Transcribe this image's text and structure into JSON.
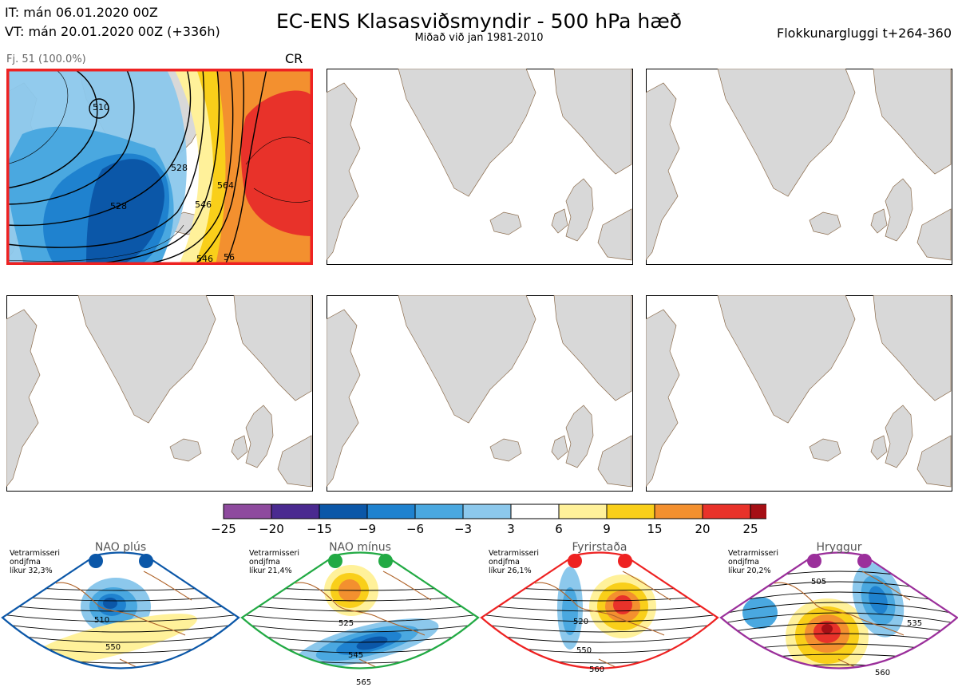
{
  "header": {
    "initial_time": "IT: mán 06.01.2020 00Z",
    "valid_time": "VT: mán 20.01.2020 00Z  (+336h)",
    "title": "EC-ENS Klasasviðsmyndir - 500 hPa hæð",
    "subtitle": "Miðað við jan 1981-2010",
    "window": "Flokkunargluggi t+264-360"
  },
  "panel1": {
    "member_label": "Fj. 51 (100.0%)",
    "cluster": "CR",
    "highlight_color": "#ee2222",
    "contour_labels": [
      "510",
      "528",
      "546",
      "564",
      "546",
      "528",
      "56"
    ]
  },
  "colorbar": {
    "ticks": [
      "−25",
      "−20",
      "−15",
      "−9",
      "−6",
      "−3",
      "3",
      "6",
      "9",
      "15",
      "20",
      "25"
    ],
    "colors": [
      "#8e4a9e",
      "#4a2a90",
      "#0b57a8",
      "#1f82cf",
      "#4aa8e0",
      "#8cc8ec",
      "#ffffff",
      "#fff19a",
      "#f9cf1a",
      "#f3902f",
      "#e8322a",
      "#a50f15"
    ]
  },
  "regimes": [
    {
      "name": "NAO plús",
      "season": "Vetrarmisseri",
      "mean": "ondjfma",
      "likelihood": "líkur 32,3%",
      "color": "#0b57a8",
      "contours": [
        "510",
        "550"
      ]
    },
    {
      "name": "NAO mínus",
      "season": "Vetrarmisseri",
      "mean": "ondjfma",
      "likelihood": "líkur 21,4%",
      "color": "#22aa44",
      "contours": [
        "525",
        "545",
        "565"
      ]
    },
    {
      "name": "Fyrirstaða",
      "season": "Vetrarmisseri",
      "mean": "ondjfma",
      "likelihood": "líkur 26,1%",
      "color": "#ee2222",
      "contours": [
        "520",
        "550",
        "560"
      ]
    },
    {
      "name": "Hryggur",
      "season": "Vetrarmisseri",
      "mean": "ondjfma",
      "likelihood": "líkur 20,2%",
      "color": "#9b2f9b",
      "contours": [
        "505",
        "535",
        "560"
      ]
    }
  ]
}
